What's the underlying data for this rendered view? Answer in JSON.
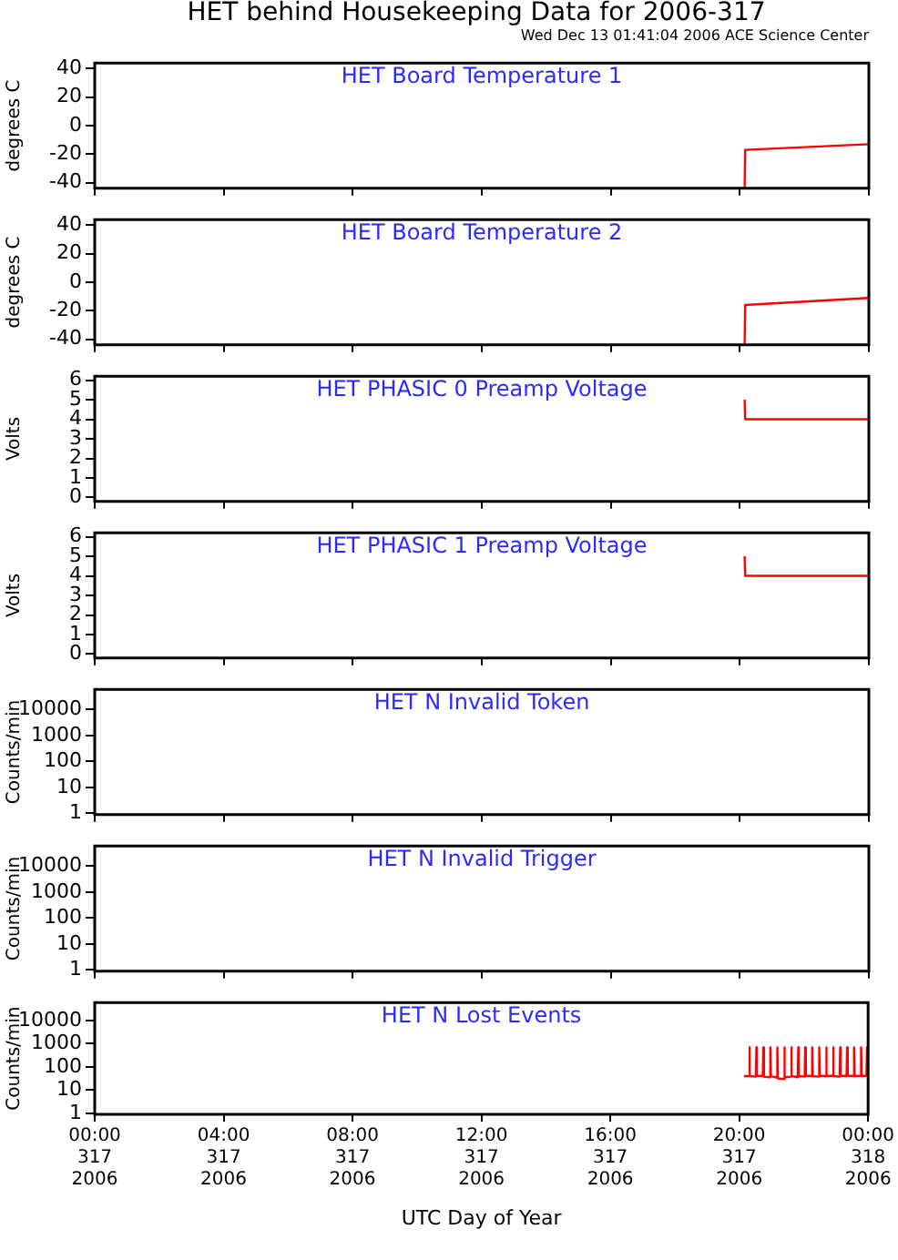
{
  "chart_data": [
    {
      "type": "line",
      "title": "HET Board Temperature 1",
      "ylabel": "degrees C",
      "annotations": [
        "HET behind Housekeeping Data for 2006-317",
        "Wed Dec 13 01:41:04 2006 ACE Science Center"
      ],
      "xlim": [
        "2006-11-13T00:00",
        "2006-11-14T00:00"
      ],
      "xticks": [
        {
          "value": "2006-11-13T00:00",
          "label": null
        },
        {
          "value": "2006-11-13T04:00",
          "label": null
        },
        {
          "value": "2006-11-13T08:00",
          "label": null
        },
        {
          "value": "2006-11-13T12:00",
          "label": null
        },
        {
          "value": "2006-11-13T16:00",
          "label": null
        },
        {
          "value": "2006-11-13T20:00",
          "label": null
        },
        {
          "value": "2006-11-14T00:00",
          "label": null
        }
      ],
      "ylim": [
        -44,
        44
      ],
      "yticks": [
        -40,
        -20,
        0,
        20,
        40
      ],
      "tick_labels": "y",
      "grid": false,
      "legend": false,
      "marker": "none",
      "line_style": "solid",
      "series": [
        {
          "color": "#ff0000",
          "x": [
            "2006-11-13T20:09",
            "2006-11-13T20:10",
            "2006-11-14T00:00"
          ],
          "values": [
            -43,
            -17,
            -13
          ]
        }
      ]
    },
    {
      "type": "line",
      "title": "HET Board Temperature 2",
      "ylabel": "degrees C",
      "xlim": [
        "2006-11-13T00:00",
        "2006-11-14T00:00"
      ],
      "xticks": [
        {
          "value": "2006-11-13T00:00",
          "label": null
        },
        {
          "value": "2006-11-13T04:00",
          "label": null
        },
        {
          "value": "2006-11-13T08:00",
          "label": null
        },
        {
          "value": "2006-11-13T12:00",
          "label": null
        },
        {
          "value": "2006-11-13T16:00",
          "label": null
        },
        {
          "value": "2006-11-13T20:00",
          "label": null
        },
        {
          "value": "2006-11-14T00:00",
          "label": null
        }
      ],
      "ylim": [
        -44,
        44
      ],
      "yticks": [
        -40,
        -20,
        0,
        20,
        40
      ],
      "tick_labels": "y",
      "grid": false,
      "legend": false,
      "marker": "none",
      "line_style": "solid",
      "series": [
        {
          "color": "#ff0000",
          "x": [
            "2006-11-13T20:09",
            "2006-11-13T20:10",
            "2006-11-14T00:00"
          ],
          "values": [
            -43,
            -16,
            -11
          ]
        }
      ]
    },
    {
      "type": "line",
      "title": "HET PHASIC 0 Preamp Voltage",
      "ylabel": "Volts",
      "xlim": [
        "2006-11-13T00:00",
        "2006-11-14T00:00"
      ],
      "xticks": [
        {
          "value": "2006-11-13T00:00",
          "label": null
        },
        {
          "value": "2006-11-13T04:00",
          "label": null
        },
        {
          "value": "2006-11-13T08:00",
          "label": null
        },
        {
          "value": "2006-11-13T12:00",
          "label": null
        },
        {
          "value": "2006-11-13T16:00",
          "label": null
        },
        {
          "value": "2006-11-13T20:00",
          "label": null
        },
        {
          "value": "2006-11-14T00:00",
          "label": null
        }
      ],
      "ylim": [
        -0.2,
        6.2
      ],
      "yticks": [
        0,
        1,
        2,
        3,
        4,
        5,
        6
      ],
      "tick_labels": "y",
      "grid": false,
      "legend": false,
      "marker": "none",
      "line_style": "solid",
      "series": [
        {
          "color": "#ff0000",
          "x": [
            "2006-11-13T20:09",
            "2006-11-13T20:10",
            "2006-11-14T00:00"
          ],
          "values": [
            5,
            4,
            4
          ]
        }
      ]
    },
    {
      "type": "line",
      "title": "HET PHASIC 1 Preamp Voltage",
      "ylabel": "Volts",
      "xlim": [
        "2006-11-13T00:00",
        "2006-11-14T00:00"
      ],
      "xticks": [
        {
          "value": "2006-11-13T00:00",
          "label": null
        },
        {
          "value": "2006-11-13T04:00",
          "label": null
        },
        {
          "value": "2006-11-13T08:00",
          "label": null
        },
        {
          "value": "2006-11-13T12:00",
          "label": null
        },
        {
          "value": "2006-11-13T16:00",
          "label": null
        },
        {
          "value": "2006-11-13T20:00",
          "label": null
        },
        {
          "value": "2006-11-14T00:00",
          "label": null
        }
      ],
      "ylim": [
        -0.2,
        6.2
      ],
      "yticks": [
        0,
        1,
        2,
        3,
        4,
        5,
        6
      ],
      "tick_labels": "y",
      "grid": false,
      "legend": false,
      "marker": "none",
      "line_style": "solid",
      "series": [
        {
          "color": "#ff0000",
          "x": [
            "2006-11-13T20:09",
            "2006-11-13T20:10",
            "2006-11-14T00:00"
          ],
          "values": [
            5,
            4,
            4
          ]
        }
      ]
    },
    {
      "type": "line",
      "title": "HET N Invalid Token",
      "ylabel": "Counts/min",
      "xlim": [
        "2006-11-13T00:00",
        "2006-11-14T00:00"
      ],
      "xticks": [
        {
          "value": "2006-11-13T00:00",
          "label": null
        },
        {
          "value": "2006-11-13T04:00",
          "label": null
        },
        {
          "value": "2006-11-13T08:00",
          "label": null
        },
        {
          "value": "2006-11-13T12:00",
          "label": null
        },
        {
          "value": "2006-11-13T16:00",
          "label": null
        },
        {
          "value": "2006-11-13T20:00",
          "label": null
        },
        {
          "value": "2006-11-14T00:00",
          "label": null
        }
      ],
      "ylim": [
        0.9,
        60000
      ],
      "yticks": [
        1,
        10,
        100,
        1000,
        10000
      ],
      "log": true,
      "tick_labels": "y",
      "grid": false,
      "legend": false
    },
    {
      "type": "line",
      "title": "HET N Invalid Trigger",
      "ylabel": "Counts/min",
      "xlim": [
        "2006-11-13T00:00",
        "2006-11-14T00:00"
      ],
      "xticks": [
        {
          "value": "2006-11-13T00:00",
          "label": null
        },
        {
          "value": "2006-11-13T04:00",
          "label": null
        },
        {
          "value": "2006-11-13T08:00",
          "label": null
        },
        {
          "value": "2006-11-13T12:00",
          "label": null
        },
        {
          "value": "2006-11-13T16:00",
          "label": null
        },
        {
          "value": "2006-11-13T20:00",
          "label": null
        },
        {
          "value": "2006-11-14T00:00",
          "label": null
        }
      ],
      "ylim": [
        0.9,
        60000
      ],
      "yticks": [
        1,
        10,
        100,
        1000,
        10000
      ],
      "log": true,
      "tick_labels": "y",
      "grid": false,
      "legend": false
    },
    {
      "type": "line",
      "title": "HET N Lost Events",
      "ylabel": "Counts/min",
      "xlabel": "UTC Day of Year",
      "xlim": [
        "2006-11-13T00:00",
        "2006-11-14T00:00"
      ],
      "xticks": [
        {
          "value": "2006-11-13T00:00",
          "label": "00:00\n317\n2006"
        },
        {
          "value": "2006-11-13T04:00",
          "label": "04:00\n317\n2006"
        },
        {
          "value": "2006-11-13T08:00",
          "label": "08:00\n317\n2006"
        },
        {
          "value": "2006-11-13T12:00",
          "label": "12:00\n317\n2006"
        },
        {
          "value": "2006-11-13T16:00",
          "label": "16:00\n317\n2006"
        },
        {
          "value": "2006-11-13T20:00",
          "label": "20:00\n317\n2006"
        },
        {
          "value": "2006-11-14T00:00",
          "label": "00:00\n318\n2006"
        }
      ],
      "ylim": [
        0.9,
        60000
      ],
      "yticks": [
        1,
        10,
        100,
        1000,
        10000
      ],
      "log": true,
      "grid": false,
      "legend": false,
      "marker": "none",
      "line_style": "solid",
      "series": [
        {
          "color": "#ff0000",
          "x": [
            "2006-11-13T20:09",
            "2006-11-13T20:18",
            "2006-11-13T20:19",
            "2006-11-13T20:20",
            "2006-11-13T20:31",
            "2006-11-13T20:32",
            "2006-11-13T20:33",
            "2006-11-13T20:44",
            "2006-11-13T20:45",
            "2006-11-13T20:46",
            "2006-11-13T20:57",
            "2006-11-13T20:58",
            "2006-11-13T20:59",
            "2006-11-13T21:10",
            "2006-11-13T21:11",
            "2006-11-13T21:12",
            "2006-11-13T21:23",
            "2006-11-13T21:24",
            "2006-11-13T21:25",
            "2006-11-13T21:36",
            "2006-11-13T21:37",
            "2006-11-13T21:38",
            "2006-11-13T21:49",
            "2006-11-13T21:50",
            "2006-11-13T21:51",
            "2006-11-13T22:02",
            "2006-11-13T22:03",
            "2006-11-13T22:04",
            "2006-11-13T22:15",
            "2006-11-13T22:16",
            "2006-11-13T22:17",
            "2006-11-13T22:28",
            "2006-11-13T22:29",
            "2006-11-13T22:30",
            "2006-11-13T22:41",
            "2006-11-13T22:42",
            "2006-11-13T22:43",
            "2006-11-13T22:54",
            "2006-11-13T22:55",
            "2006-11-13T22:56",
            "2006-11-13T23:07",
            "2006-11-13T23:08",
            "2006-11-13T23:09",
            "2006-11-13T23:20",
            "2006-11-13T23:21",
            "2006-11-13T23:22",
            "2006-11-13T23:33",
            "2006-11-13T23:34",
            "2006-11-13T23:35",
            "2006-11-13T23:46",
            "2006-11-13T23:47",
            "2006-11-13T23:48",
            "2006-11-13T23:57",
            "2006-11-13T23:58",
            "2006-11-14T00:00"
          ],
          "values": [
            40,
            40,
            700,
            40,
            38,
            700,
            42,
            40,
            700,
            38,
            36,
            700,
            40,
            35,
            700,
            32,
            30,
            700,
            35,
            38,
            700,
            40,
            36,
            700,
            40,
            38,
            700,
            42,
            40,
            700,
            40,
            38,
            700,
            42,
            40,
            700,
            40,
            42,
            700,
            40,
            38,
            700,
            42,
            40,
            700,
            42,
            40,
            700,
            40,
            42,
            700,
            40,
            42,
            700,
            35
          ]
        }
      ]
    }
  ]
}
